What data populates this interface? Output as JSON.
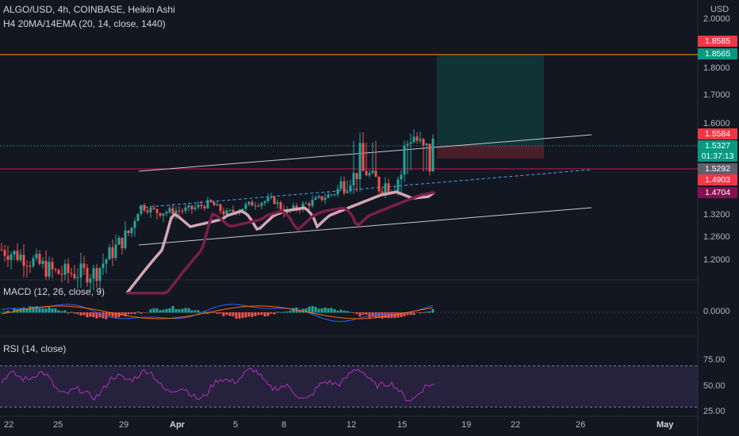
{
  "header": {
    "symbol_line": "ALGO/USD, 4h, COINBASE, Heikin Ashi",
    "indicator_line": "H4 20MA/14EMA (20, 14, close, 1440)",
    "currency": "USD"
  },
  "price_axis": {
    "ticks": [
      "2.0000",
      "1.8000",
      "1.7000",
      "1.6000",
      "1.3200",
      "1.2600",
      "1.2000"
    ],
    "tick_values": [
      2.0,
      1.8,
      1.7,
      1.6,
      1.32,
      1.26,
      1.2
    ]
  },
  "price_tags": [
    {
      "text": "1.8585",
      "value": 1.8585,
      "color": "#f23645"
    },
    {
      "text": "1.8565",
      "value": 1.8565,
      "color": "#089981"
    },
    {
      "text": "1.5584",
      "value": 1.5584,
      "color": "#f23645"
    },
    {
      "text": "1.5327",
      "value": 1.5327,
      "color": "#089981"
    },
    {
      "text": "01:37:13",
      "value": 1.5327,
      "color": "#089981",
      "countdown": true
    },
    {
      "text": "1.5292",
      "value": 1.5292,
      "color": "#5d606b"
    },
    {
      "text": "1.4903",
      "value": 1.4903,
      "color": "#f23645"
    },
    {
      "text": "1.4704",
      "value": 1.4704,
      "color": "#880e4f"
    }
  ],
  "macd": {
    "label": "MACD (12, 26, close, 9)",
    "tick": "0.0000"
  },
  "rsi": {
    "label": "RSI (14, close)",
    "ticks": [
      "75.00",
      "50.00",
      "25.00"
    ],
    "tick_values": [
      75,
      50,
      25
    ],
    "upper": 70,
    "lower": 30
  },
  "time_axis": {
    "labels": [
      "22",
      "25",
      "29",
      "Apr",
      "5",
      "8",
      "12",
      "15",
      "19",
      "22",
      "26",
      "May"
    ]
  },
  "colors": {
    "bg": "#131722",
    "up": "#26a69a",
    "down": "#ef5350",
    "ma_fast": "#d5a6b5",
    "ma_slow": "#7b1f4a",
    "orange_line": "#ff9800",
    "rsi_line": "#b42fb7",
    "macd_line": "#2962ff",
    "signal_line": "#ff6d00"
  }
}
